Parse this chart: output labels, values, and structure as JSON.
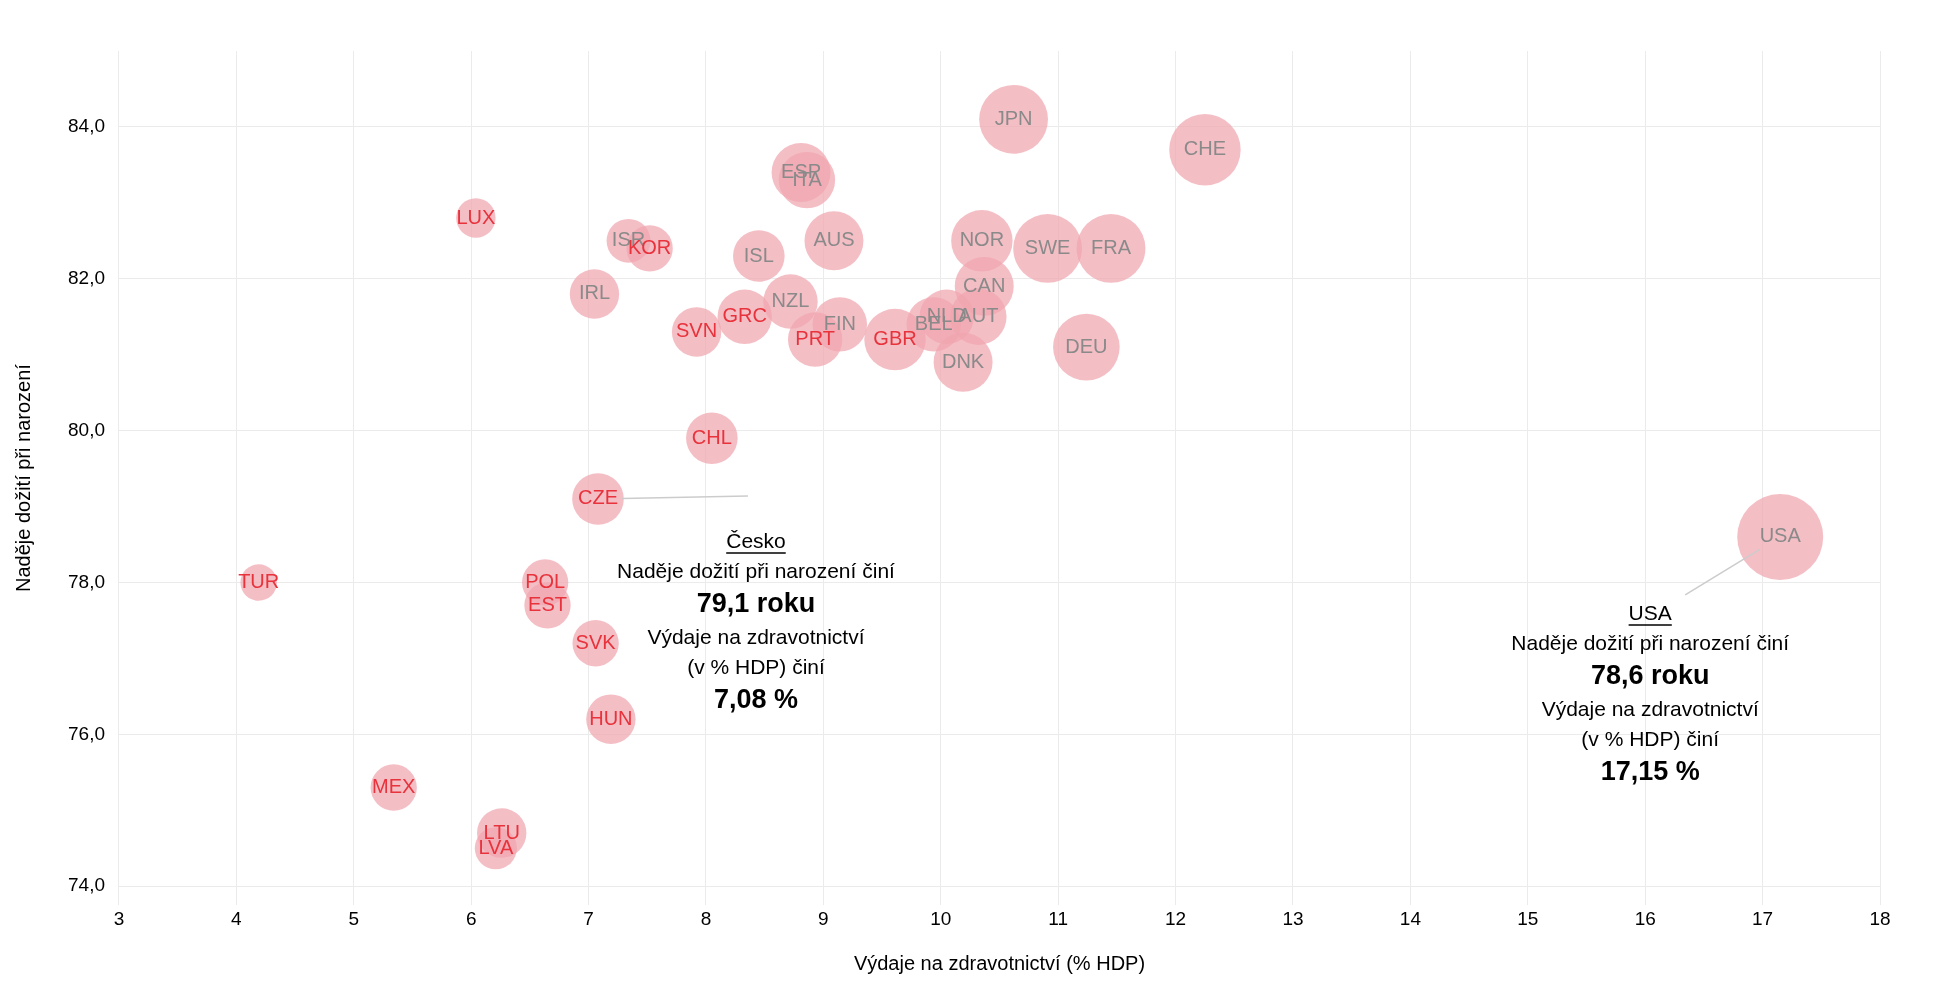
{
  "chart_data": {
    "type": "bubble",
    "xlabel": "Výdaje na zdravotnictví (% HDP)",
    "ylabel": "Naděje dožití při narození",
    "xlim": [
      3,
      18
    ],
    "xticks": [
      3,
      4,
      5,
      6,
      7,
      8,
      9,
      10,
      11,
      12,
      13,
      14,
      15,
      16,
      17,
      18
    ],
    "ylim": [
      73.75,
      85
    ],
    "yticks": [
      {
        "value": 74,
        "label": "74,0"
      },
      {
        "value": 76,
        "label": "76,0"
      },
      {
        "value": 78,
        "label": "78,0"
      },
      {
        "value": 80,
        "label": "80,0"
      },
      {
        "value": 82,
        "label": "82,0"
      },
      {
        "value": 84,
        "label": "84,0"
      }
    ],
    "grid": true,
    "legend": false,
    "series": [
      {
        "color": "#f0a5af",
        "x": [
          10.62,
          12.25,
          8.81,
          8.86,
          7.34,
          8.45,
          9.09,
          10.35,
          10.91,
          11.45,
          7.05,
          10.37,
          8.72,
          10.05,
          10.32,
          9.94,
          9.14,
          11.24,
          10.19,
          17.15
        ],
        "values": [
          84.1,
          83.7,
          83.4,
          83.3,
          82.5,
          82.3,
          82.5,
          82.5,
          82.4,
          82.4,
          81.8,
          81.9,
          81.7,
          81.5,
          81.5,
          81.4,
          81.4,
          81.1,
          80.9,
          78.6
        ],
        "sizes": [
          0.64,
          0.69,
          0.47,
          0.43,
          0.26,
          0.36,
          0.47,
          0.51,
          0.64,
          0.64,
          0.33,
          0.47,
          0.4,
          0.4,
          0.43,
          0.4,
          0.4,
          0.6,
          0.47,
          1
        ],
        "value_labels": [
          "JPN",
          "CHE",
          "ESP",
          "ITA",
          "ISR",
          "ISL",
          "AUS",
          "NOR",
          "SWE",
          "FRA",
          "IRL",
          "CAN",
          "NZL",
          "NLD",
          "AUT",
          "BEL",
          "FIN",
          "DEU",
          "DNK",
          "USA"
        ]
      },
      {
        "color": "#f0a5af",
        "x": [
          6.04,
          7.52,
          7.92,
          8.33,
          8.93,
          9.61,
          8.05,
          7.08,
          4.19,
          6.63,
          6.65,
          7.06,
          7.19,
          5.34,
          6.26,
          6.21
        ],
        "values": [
          82.8,
          82.4,
          81.3,
          81.5,
          81.2,
          81.2,
          79.9,
          79.1,
          78.0,
          78.0,
          77.7,
          77.2,
          76.2,
          75.3,
          74.7,
          74.5
        ],
        "sizes": [
          0.21,
          0.29,
          0.33,
          0.4,
          0.4,
          0.51,
          0.36,
          0.36,
          0.18,
          0.29,
          0.29,
          0.29,
          0.33,
          0.29,
          0.33,
          0.24
        ],
        "value_labels": [
          "LUX",
          "KOR",
          "SVN",
          "GRC",
          "PRT",
          "GBR",
          "CHL",
          "CZE",
          "TUR",
          "POL",
          "EST",
          "SVK",
          "HUN",
          "MEX",
          "LTU",
          "LVA"
        ]
      }
    ],
    "annotations": [
      {
        "text": "Česko\nNaděje dožití při narození činí\n79,1 roku\nVýdaje na zdravotnictví\n(v % HDP) činí\n7,08 %",
        "x": 7.08,
        "y": 79.1
      },
      {
        "text": "USA\nNaděje dožití při narození činí\n78,6 roku\nVýdaje na zdravotnictví\n(v % HDP) činí\n17,15 %",
        "x": 17.15,
        "y": 78.6
      }
    ]
  }
}
